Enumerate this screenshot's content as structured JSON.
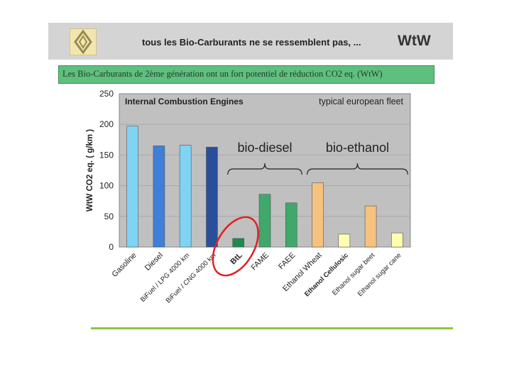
{
  "header": {
    "title": "tous les Bio-Carburants ne se ressemblent pas, ...",
    "brand": "WtW",
    "logo_icon": "renault-diamond-logo"
  },
  "subtitle": "Les Bio-Carburants de 2ème génération ont un fort potentiel de réduction CO2 eq. (WtW)",
  "colors": {
    "header_bg": "#d4d4d4",
    "subtitle_bg": "#5fbf7f",
    "plot_bg": "#c0c0c0",
    "light_blue": "#7fd4f5",
    "blue": "#3f7fd8",
    "dark_blue": "#2a4f9a",
    "green_dark": "#1f8a4f",
    "green": "#3fa86a",
    "orange": "#f5c27f",
    "pale_yellow": "#ffffb0",
    "highlight_circle": "#e02020",
    "footer_line": "#8dc63f"
  },
  "chart_data": {
    "type": "bar",
    "title": "Internal Combustion Engines",
    "annotation_right": "typical european fleet",
    "ylabel": "WtW CO2 eq. ( g/km )",
    "ylim": [
      0,
      250
    ],
    "yticks": [
      0,
      50,
      100,
      150,
      200,
      250
    ],
    "grid": true,
    "categories": [
      "Gasoline",
      "Diesel",
      "BiFuel / LPG 4000 km",
      "BiFuel / CNG 4000 km",
      "BtL",
      "FAME",
      "FAEE",
      "Ethanol Wheat",
      "Ethanol Cellulosic",
      "Ethanol sugar beet",
      "Ethanol sugar cane"
    ],
    "values": [
      197,
      165,
      166,
      163,
      14,
      86,
      72,
      105,
      21,
      67,
      23
    ],
    "bar_colors": [
      "light_blue",
      "blue",
      "light_blue",
      "dark_blue",
      "green_dark",
      "green",
      "green",
      "orange",
      "pale_yellow",
      "orange",
      "pale_yellow"
    ],
    "bold_categories": [
      "BtL",
      "Ethanol Cellulosic"
    ],
    "highlighted_category": "BtL",
    "groups": [
      {
        "label": "bio-diesel",
        "from": 4,
        "to": 6
      },
      {
        "label": "bio-ethanol",
        "from": 7,
        "to": 10
      }
    ]
  }
}
